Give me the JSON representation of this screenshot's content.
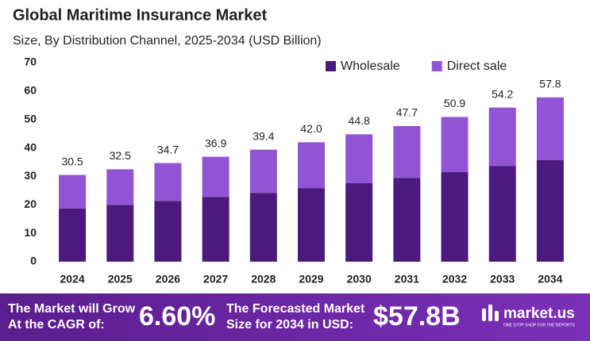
{
  "chart_data": {
    "type": "stacked_bar",
    "title": "Global Maritime Insurance Market",
    "subtitle": "Size, By Distribution Channel, 2025-2034 (USD Billion)",
    "categories": [
      "2024",
      "2025",
      "2026",
      "2027",
      "2028",
      "2029",
      "2030",
      "2031",
      "2032",
      "2033",
      "2034"
    ],
    "series": [
      {
        "name": "Wholesale",
        "color": "#4b1a80",
        "values": [
          18.7,
          20.0,
          21.4,
          22.8,
          24.2,
          25.9,
          27.6,
          29.5,
          31.5,
          33.7,
          35.7
        ]
      },
      {
        "name": "Direct sale",
        "color": "#9254d6",
        "values": [
          11.8,
          12.5,
          13.3,
          14.1,
          15.2,
          16.1,
          17.2,
          18.2,
          19.4,
          20.5,
          22.1
        ]
      }
    ],
    "totals": [
      "30.5",
      "32.5",
      "34.7",
      "36.9",
      "39.4",
      "42.0",
      "44.8",
      "47.7",
      "50.9",
      "54.2",
      "57.8"
    ],
    "ylim": [
      0,
      70
    ],
    "yticks": [
      0,
      10,
      20,
      30,
      40,
      50,
      60,
      70
    ],
    "grid": false,
    "legend": "top-right"
  },
  "footer": {
    "cagr_label": [
      "The Market will Grow",
      "At the CAGR of:"
    ],
    "cagr": "6.60%",
    "forecast_label": [
      "The Forecasted Market",
      "Size for 2034 in USD:"
    ],
    "forecast": "$57.8B",
    "brand": "market.us",
    "tagline": "ONE STOP SHOP FOR THE REPORTS"
  }
}
